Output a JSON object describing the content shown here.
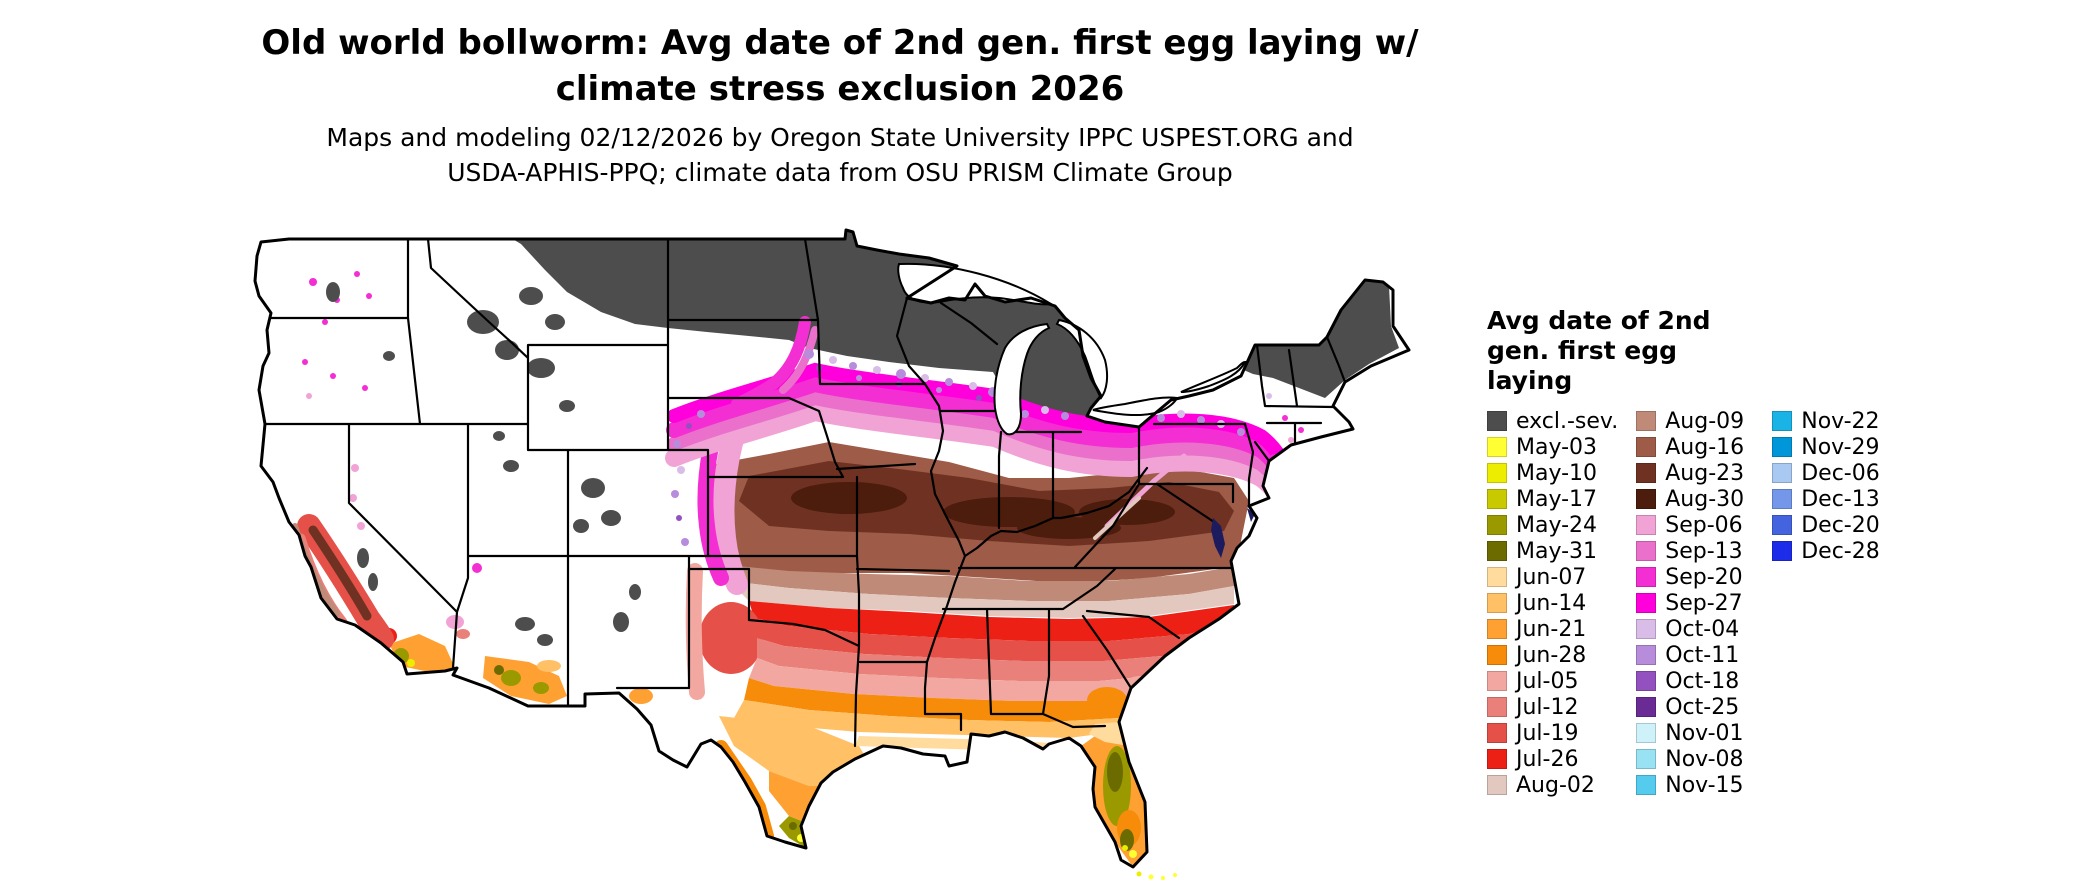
{
  "title": {
    "line1": "Old world bollworm: Avg date of 2nd gen. first egg laying w/",
    "line2": "climate stress exclusion 2026"
  },
  "subtitle": {
    "line1": "Maps and modeling 02/12/2026 by Oregon State University IPPC USPEST.ORG and",
    "line2": "USDA-APHIS-PPQ; climate data from OSU PRISM Climate Group"
  },
  "legend": {
    "title_lines": [
      "Avg date of 2nd",
      "gen. first egg",
      "laying"
    ],
    "columns": [
      [
        {
          "label": "excl.-sev.",
          "color": "#4D4D4D"
        },
        {
          "label": "May-03",
          "color": "#FFFF33"
        },
        {
          "label": "May-10",
          "color": "#EDED00"
        },
        {
          "label": "May-17",
          "color": "#C9C900"
        },
        {
          "label": "May-24",
          "color": "#9A9A00"
        },
        {
          "label": "May-31",
          "color": "#6B6B00"
        },
        {
          "label": "Jun-07",
          "color": "#FFDC9E"
        },
        {
          "label": "Jun-14",
          "color": "#FFC066"
        },
        {
          "label": "Jun-21",
          "color": "#FFA033"
        },
        {
          "label": "Jun-28",
          "color": "#F78C0A"
        },
        {
          "label": "Jul-05",
          "color": "#F2A8A0"
        },
        {
          "label": "Jul-12",
          "color": "#EA807A"
        },
        {
          "label": "Jul-19",
          "color": "#E55048"
        },
        {
          "label": "Jul-26",
          "color": "#ED2015"
        },
        {
          "label": "Aug-02",
          "color": "#E2C8BE"
        }
      ],
      [
        {
          "label": "Aug-09",
          "color": "#C08A78"
        },
        {
          "label": "Aug-16",
          "color": "#9E5C48"
        },
        {
          "label": "Aug-23",
          "color": "#6F3222"
        },
        {
          "label": "Aug-30",
          "color": "#4C1C0C"
        },
        {
          "label": "Sep-06",
          "color": "#F1A3D6"
        },
        {
          "label": "Sep-13",
          "color": "#EA70CC"
        },
        {
          "label": "Sep-20",
          "color": "#F32ED3"
        },
        {
          "label": "Sep-27",
          "color": "#FF00DC"
        },
        {
          "label": "Oct-04",
          "color": "#D9BDE8"
        },
        {
          "label": "Oct-11",
          "color": "#B78CDB"
        },
        {
          "label": "Oct-18",
          "color": "#9251BE"
        },
        {
          "label": "Oct-25",
          "color": "#6A2B95"
        },
        {
          "label": "Nov-01",
          "color": "#CFF1FA"
        },
        {
          "label": "Nov-08",
          "color": "#98E2F4"
        },
        {
          "label": "Nov-15",
          "color": "#55CBEE"
        }
      ],
      [
        {
          "label": "Nov-22",
          "color": "#19B3E6"
        },
        {
          "label": "Nov-29",
          "color": "#0096DA"
        },
        {
          "label": "Dec-06",
          "color": "#A9C9F2"
        },
        {
          "label": "Dec-13",
          "color": "#7497E9"
        },
        {
          "label": "Dec-20",
          "color": "#4463DE"
        },
        {
          "label": "Dec-28",
          "color": "#1D2CE8"
        }
      ]
    ]
  }
}
